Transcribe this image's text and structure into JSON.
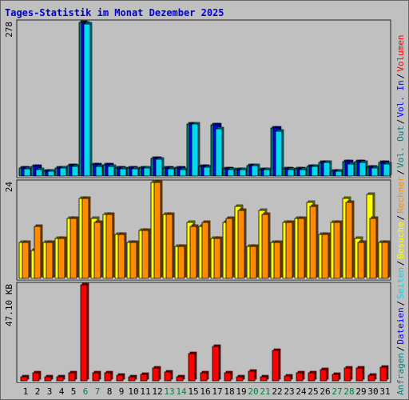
{
  "title": "Tages-Statistik im Monat Dezember 2025",
  "colors": {
    "background": "#c0c0c0",
    "frame": "#333333",
    "title": "#0000cc",
    "anfragen": "#008080",
    "dateien": "#0000ff",
    "seiten": "#00d8f0",
    "besuche": "#ffff00",
    "rechner": "#ff8c00",
    "volumen": "#ff0000",
    "vol_in": "#0000ff",
    "vol_out": "#008080",
    "weekend": "#008040",
    "weekday": "#000000"
  },
  "right_legend": {
    "top": [
      {
        "text": "Anfragen",
        "color_key": "anfragen"
      },
      {
        "text": "/",
        "color_key": "weekday"
      },
      {
        "text": "Dateien",
        "color_key": "dateien"
      },
      {
        "text": "/",
        "color_key": "weekday"
      },
      {
        "text": "Seiten",
        "color_key": "seiten"
      },
      {
        "text": "/",
        "color_key": "weekday"
      },
      {
        "text": "Besuche",
        "color_key": "besuche"
      },
      {
        "text": "/",
        "color_key": "weekday"
      },
      {
        "text": "Rechner",
        "color_key": "rechner"
      },
      {
        "text": "/",
        "color_key": "weekday"
      },
      {
        "text": "Vol. Out",
        "color_key": "vol_out"
      },
      {
        "text": "/",
        "color_key": "weekday"
      },
      {
        "text": "Vol. In",
        "color_key": "vol_in"
      },
      {
        "text": "/",
        "color_key": "weekday"
      },
      {
        "text": "Volumen",
        "color_key": "volumen"
      }
    ]
  },
  "chart_data": [
    {
      "type": "bar",
      "panel": "top",
      "ymax_label": "278",
      "ylim": [
        0,
        278
      ],
      "categories": [
        "1",
        "2",
        "3",
        "4",
        "5",
        "6",
        "7",
        "8",
        "9",
        "10",
        "11",
        "12",
        "13",
        "14",
        "15",
        "16",
        "17",
        "18",
        "19",
        "20",
        "21",
        "22",
        "23",
        "24",
        "25",
        "26",
        "27",
        "28",
        "29",
        "30",
        "31"
      ],
      "weekend_days": [
        6,
        7,
        13,
        14,
        20,
        21,
        27,
        28
      ],
      "series": [
        {
          "name": "Anfragen",
          "color_key": "anfragen",
          "values": [
            14,
            17,
            9,
            14,
            19,
            278,
            20,
            20,
            15,
            14,
            15,
            32,
            15,
            14,
            94,
            18,
            93,
            13,
            11,
            19,
            12,
            87,
            13,
            13,
            18,
            24,
            9,
            26,
            26,
            16,
            24
          ]
        },
        {
          "name": "Dateien",
          "color_key": "dateien",
          "values": [
            14,
            17,
            9,
            14,
            19,
            277,
            20,
            20,
            15,
            14,
            15,
            32,
            15,
            14,
            94,
            18,
            93,
            13,
            11,
            19,
            12,
            87,
            13,
            13,
            18,
            24,
            9,
            26,
            26,
            16,
            24
          ]
        },
        {
          "name": "Seiten",
          "color_key": "seiten",
          "values": [
            13,
            12,
            8,
            14,
            18,
            275,
            18,
            18,
            13,
            13,
            15,
            30,
            13,
            12,
            94,
            16,
            86,
            11,
            11,
            19,
            11,
            81,
            12,
            12,
            18,
            24,
            9,
            21,
            24,
            15,
            22
          ]
        }
      ]
    },
    {
      "type": "bar",
      "panel": "middle",
      "ymax_label": "24",
      "ylim": [
        0,
        24
      ],
      "categories": [
        "1",
        "2",
        "3",
        "4",
        "5",
        "6",
        "7",
        "8",
        "9",
        "10",
        "11",
        "12",
        "13",
        "14",
        "15",
        "16",
        "17",
        "18",
        "19",
        "20",
        "21",
        "22",
        "23",
        "24",
        "25",
        "26",
        "27",
        "28",
        "29",
        "30",
        "31"
      ],
      "series": [
        {
          "name": "Besuche",
          "color_key": "besuche",
          "values": [
            9,
            7,
            9,
            10,
            15,
            20,
            15,
            16,
            11,
            9,
            12,
            24,
            16,
            8,
            14,
            13,
            10,
            14,
            18,
            8,
            17,
            9,
            14,
            15,
            19,
            11,
            14,
            20,
            10,
            21,
            9
          ]
        },
        {
          "name": "Rechner",
          "color_key": "rechner",
          "values": [
            9,
            13,
            9,
            10,
            15,
            20,
            14,
            16,
            11,
            9,
            12,
            24,
            16,
            8,
            13,
            14,
            10,
            15,
            17,
            8,
            16,
            9,
            14,
            15,
            18,
            11,
            14,
            19,
            9,
            15,
            9
          ]
        }
      ]
    },
    {
      "type": "bar",
      "panel": "bottom",
      "ymax_label": "47.10 KB",
      "ylim": [
        0,
        47.1
      ],
      "categories": [
        "1",
        "2",
        "3",
        "4",
        "5",
        "6",
        "7",
        "8",
        "9",
        "10",
        "11",
        "12",
        "13",
        "14",
        "15",
        "16",
        "17",
        "18",
        "19",
        "20",
        "21",
        "22",
        "23",
        "24",
        "25",
        "26",
        "27",
        "28",
        "29",
        "30",
        "31"
      ],
      "series": [
        {
          "name": "Volumen",
          "color_key": "volumen",
          "values": [
            2.1,
            4.0,
            2.1,
            2.1,
            4.0,
            47.1,
            4.0,
            4.0,
            2.9,
            2.1,
            3.2,
            6.3,
            4.5,
            2.1,
            13.4,
            4.0,
            17.0,
            4.0,
            2.1,
            4.8,
            2.1,
            15.1,
            2.5,
            4.0,
            4.0,
            5.5,
            3.2,
            6.3,
            6.3,
            2.9,
            6.8
          ]
        }
      ]
    }
  ]
}
